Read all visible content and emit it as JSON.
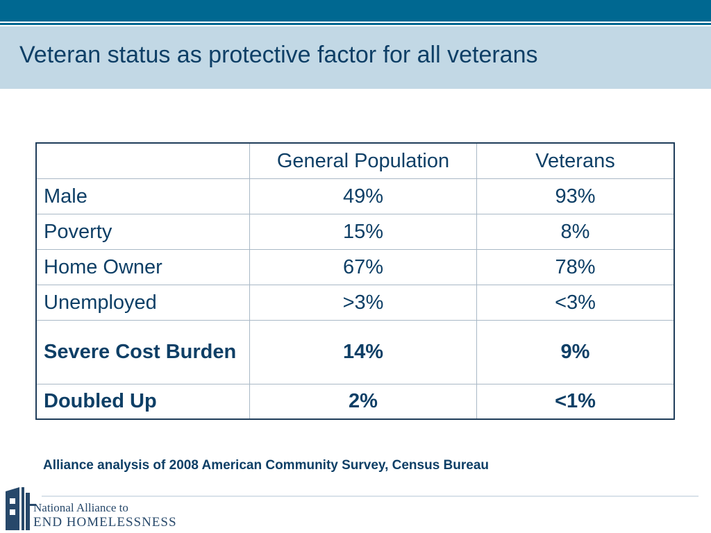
{
  "slide": {
    "title": "Veteran status as protective factor for all veterans",
    "source": "Alliance analysis of  2008 American Community Survey, Census Bureau"
  },
  "table": {
    "header": {
      "label": "",
      "general": "General Population",
      "veterans": "Veterans"
    },
    "rows": [
      {
        "label": "Male",
        "general": "49%",
        "veterans": "93%"
      },
      {
        "label": "Poverty",
        "general": "15%",
        "veterans": "8%"
      },
      {
        "label": "Home Owner",
        "general": "67%",
        "veterans": "78%"
      },
      {
        "label": "Unemployed",
        "general": ">3%",
        "veterans": "<3%"
      },
      {
        "label": "Severe Cost Burden",
        "general": "14%",
        "veterans": "9%"
      },
      {
        "label": "Doubled Up",
        "general": "2%",
        "veterans": "<1%"
      }
    ]
  },
  "logo": {
    "line1": "National Alliance to",
    "line2": "END HOMELESSNESS",
    "icon": "building-icon",
    "color": "#27486a"
  },
  "colors": {
    "top_bar": "#006891",
    "title_band": "#c2d8e5",
    "text": "#0e3f66"
  }
}
